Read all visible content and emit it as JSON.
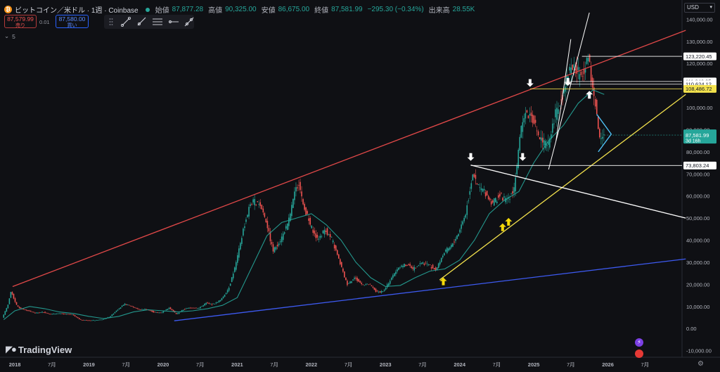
{
  "header": {
    "symbol_title": "ビットコイン／米ドル · 1週 · Coinbase",
    "ohlc": [
      {
        "label": "始値",
        "value": "87,877.28"
      },
      {
        "label": "高値",
        "value": "90,325.00"
      },
      {
        "label": "安値",
        "value": "86,675.00"
      },
      {
        "label": "終値",
        "value": "87,581.99"
      },
      {
        "label": "",
        "value": "−295.30 (−0.34%)"
      },
      {
        "label": "出来高",
        "value": "28.55K"
      }
    ]
  },
  "trade": {
    "sell_price": "87,579.99",
    "sell_label": "売り",
    "spread": "0.01",
    "buy_price": "87,580.00",
    "buy_label": "買い"
  },
  "indicators": {
    "count": "5"
  },
  "currency": "USD",
  "toolbar": {
    "icons": [
      "trend-line-icon",
      "ray-icon",
      "parallel-channel-icon",
      "horizontal-ray-icon",
      "extended-line-icon"
    ]
  },
  "brand": {
    "name": "TradingView"
  },
  "colors": {
    "background": "#0f1014",
    "candle_up": "#26a69a",
    "candle_down": "#ef5350",
    "moving_average": "#26a69a",
    "upper_trendline": "#e04848",
    "lower_trendline": "#3d5af1",
    "support_line": "#f2e14c",
    "level_line": "#ffffff",
    "yellow_level": "#f2e14c",
    "arrow_white": "#ffffff",
    "arrow_yellow": "#f5d90a",
    "wedge": "#4fc3f7"
  },
  "chart_data": {
    "type": "line",
    "title": "",
    "x_ticks": [
      "2018",
      "7月",
      "2019",
      "7月",
      "2020",
      "7月",
      "2021",
      "7月",
      "2022",
      "7月",
      "2023",
      "7月",
      "2024",
      "7月",
      "2025",
      "7月",
      "2026",
      "7月"
    ],
    "y_ticks": [
      "140,000.00",
      "130,000.00",
      "120,000.00",
      "110,000.00",
      "100,000.00",
      "90,000.00",
      "80,000.00",
      "70,000.00",
      "60,000.00",
      "50,000.00",
      "40,000.00",
      "30,000.00",
      "20,000.00",
      "10,000.00",
      "0.00",
      "-10,000.00"
    ],
    "ylim": [
      -13000,
      143000
    ],
    "xlim": [
      2017.8,
      2027.0
    ],
    "series": [
      {
        "x": [
          2017.85,
          2017.92,
          2017.97,
          2018.0,
          2018.05,
          2018.1,
          2018.2,
          2018.3,
          2018.4,
          2018.5,
          2018.6,
          2018.7,
          2018.8,
          2018.9,
          2019.0,
          2019.1,
          2019.2,
          2019.3,
          2019.4,
          2019.5,
          2019.6,
          2019.7,
          2019.8,
          2019.9,
          2020.0,
          2020.1,
          2020.2,
          2020.3,
          2020.4,
          2020.5,
          2020.6,
          2020.7,
          2020.8,
          2020.9,
          2021.0,
          2021.1,
          2021.2,
          2021.3,
          2021.4,
          2021.5,
          2021.6,
          2021.7,
          2021.8,
          2021.85,
          2021.9,
          2022.0,
          2022.1,
          2022.2,
          2022.3,
          2022.4,
          2022.5,
          2022.6,
          2022.7,
          2022.8,
          2022.9,
          2023.0,
          2023.1,
          2023.2,
          2023.3,
          2023.4,
          2023.5,
          2023.6,
          2023.7,
          2023.8,
          2023.9,
          2024.0,
          2024.1,
          2024.2,
          2024.25,
          2024.35,
          2024.45,
          2024.55,
          2024.65,
          2024.75,
          2024.85,
          2024.9,
          2025.0,
          2025.1,
          2025.2,
          2025.3,
          2025.4,
          2025.5,
          2025.55,
          2025.62,
          2025.7,
          2025.75,
          2025.8,
          2025.85,
          2025.9,
          2025.95
        ],
        "values": [
          5000,
          10000,
          17000,
          14000,
          10000,
          9000,
          8000,
          7000,
          7500,
          6500,
          6800,
          6500,
          6300,
          4000,
          3700,
          3700,
          4100,
          5300,
          8500,
          11000,
          10000,
          8500,
          8800,
          7300,
          7200,
          9500,
          6500,
          8800,
          9500,
          9200,
          11500,
          11000,
          13000,
          18000,
          29000,
          45000,
          57000,
          58000,
          50000,
          35000,
          40000,
          47000,
          62000,
          66000,
          57000,
          47000,
          40000,
          45000,
          40000,
          30000,
          20000,
          23000,
          20000,
          20000,
          16500,
          17000,
          23000,
          28000,
          29000,
          27000,
          30000,
          29000,
          26500,
          34000,
          37000,
          43000,
          52000,
          71000,
          65000,
          62000,
          57000,
          60000,
          58000,
          63000,
          90000,
          98000,
          96000,
          86000,
          82000,
          95000,
          105000,
          118000,
          119000,
          115000,
          117000,
          124000,
          110000,
          102000,
          87000,
          87600
        ]
      },
      {
        "x": [
          2017.85,
          2018.0,
          2018.2,
          2018.4,
          2018.6,
          2018.8,
          2019.0,
          2019.2,
          2019.4,
          2019.6,
          2019.8,
          2020.0,
          2020.2,
          2020.4,
          2020.6,
          2020.8,
          2021.0,
          2021.2,
          2021.4,
          2021.6,
          2021.8,
          2022.0,
          2022.2,
          2022.4,
          2022.6,
          2022.8,
          2023.0,
          2023.2,
          2023.4,
          2023.6,
          2023.8,
          2024.0,
          2024.2,
          2024.4,
          2024.6,
          2024.8,
          2025.0,
          2025.2,
          2025.4,
          2025.6,
          2025.8,
          2025.95
        ],
        "values": [
          4000,
          8000,
          10000,
          9000,
          7500,
          6800,
          5500,
          4500,
          5500,
          7500,
          8500,
          8000,
          7500,
          8000,
          9000,
          10500,
          14000,
          28000,
          42000,
          48000,
          50000,
          52000,
          47000,
          40000,
          30000,
          23000,
          19000,
          19500,
          23000,
          26000,
          27000,
          31000,
          40000,
          52000,
          58000,
          62000,
          75000,
          85000,
          92000,
          102000,
          108000,
          106000
        ]
      }
    ],
    "levels": [
      {
        "label": "123,220.45",
        "value": 123220.45
      },
      {
        "label": "111,846.95",
        "value": 111846.95
      },
      {
        "label": "110,624.12",
        "value": 110624.12
      },
      {
        "label": "108,486.72",
        "value": 108486.72,
        "highlight": true
      },
      {
        "label": "87,581.99",
        "value": 87581.99,
        "current": true,
        "sub": "3d 16h"
      },
      {
        "label": "73,803.24",
        "value": 73803.24
      }
    ],
    "trendlines": [
      {
        "name": "upper",
        "x1": 2017.97,
        "y1": 19000,
        "x2": 2027.05,
        "y2": 135000
      },
      {
        "name": "lower",
        "x1": 2020.15,
        "y1": 3500,
        "x2": 2027.05,
        "y2": 31500
      },
      {
        "name": "support",
        "x1": 2023.73,
        "y1": 22000,
        "x2": 2027.05,
        "y2": 106000
      },
      {
        "name": "fan-down",
        "x1": 2024.15,
        "y1": 74000,
        "x2": 2027.05,
        "y2": 50000
      },
      {
        "name": "steep-1",
        "x1": 2025.2,
        "y1": 72000,
        "x2": 2025.75,
        "y2": 143000
      },
      {
        "name": "steep-2",
        "x1": 2025.3,
        "y1": 85000,
        "x2": 2025.5,
        "y2": 131000
      }
    ],
    "arrows": [
      {
        "x": 2024.15,
        "y": 77500,
        "dir": "down",
        "color": "white"
      },
      {
        "x": 2024.95,
        "y": 111000,
        "dir": "down",
        "color": "white"
      },
      {
        "x": 2024.85,
        "y": 77500,
        "dir": "down",
        "color": "white"
      },
      {
        "x": 2025.46,
        "y": 111500,
        "dir": "down",
        "color": "white"
      },
      {
        "x": 2025.75,
        "y": 106000,
        "dir": "up",
        "color": "white"
      },
      {
        "x": 2023.78,
        "y": 21500,
        "dir": "up",
        "color": "yellow"
      },
      {
        "x": 2024.58,
        "y": 46000,
        "dir": "up",
        "color": "yellow"
      },
      {
        "x": 2024.66,
        "y": 48500,
        "dir": "up",
        "color": "yellow"
      }
    ]
  }
}
